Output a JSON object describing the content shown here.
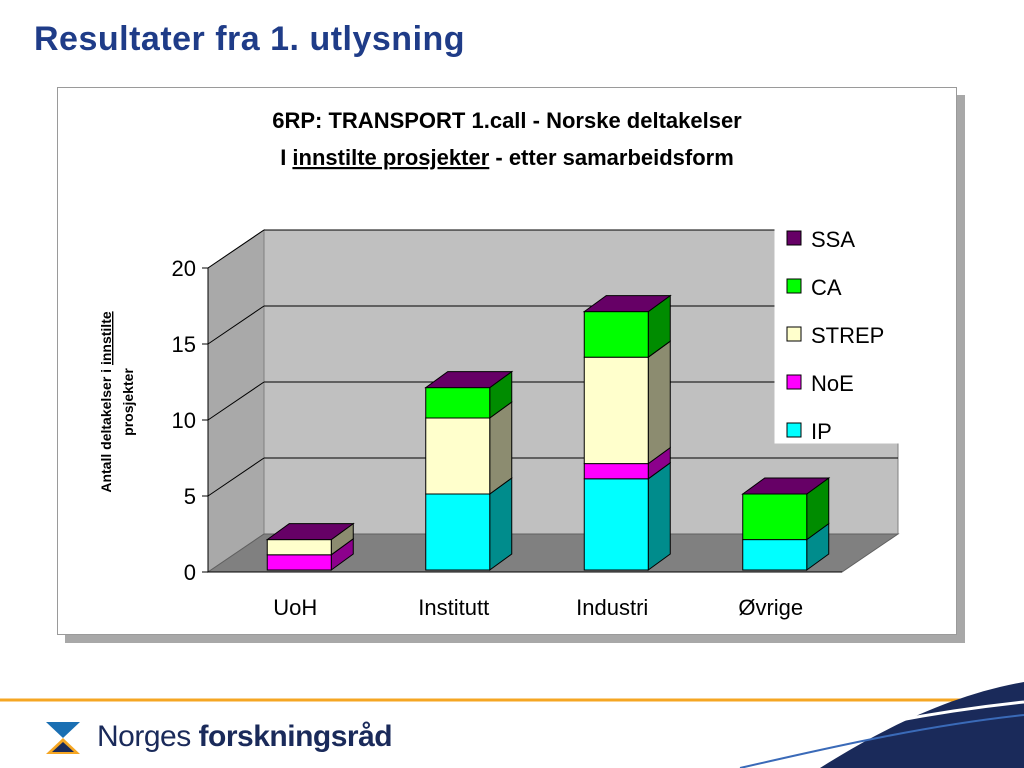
{
  "slide": {
    "title": "Resultater fra 1. utlysning"
  },
  "chart_data": {
    "type": "bar",
    "stacked": true,
    "three_d": true,
    "title_line1": "6RP:  TRANSPORT 1.call - Norske deltakelser",
    "title_line2_prefix": "I ",
    "title_line2_underlined": "innstilte prosjekter",
    "title_line2_suffix": " - etter samarbeidsform",
    "ylabel_line1_prefix": "Antall deltakelser i ",
    "ylabel_line1_underlined": "innstilte",
    "ylabel_line2": "prosjekter",
    "xlabel": "",
    "ylim": [
      0,
      20
    ],
    "yticks": [
      "0",
      "5",
      "10",
      "15",
      "20"
    ],
    "grid": true,
    "legend_position": "right",
    "categories": [
      "UoH",
      "Institutt",
      "Industri",
      "Øvrige"
    ],
    "series": [
      {
        "name": "IP",
        "color": "#00ffff",
        "values": [
          0,
          5,
          6,
          2
        ]
      },
      {
        "name": "NoE",
        "color": "#ff00ff",
        "values": [
          1,
          0,
          1,
          0
        ]
      },
      {
        "name": "STREP",
        "color": "#ffffcc",
        "values": [
          1,
          5,
          7,
          0
        ]
      },
      {
        "name": "CA",
        "color": "#00ff00",
        "values": [
          0,
          2,
          3,
          3
        ]
      },
      {
        "name": "SSA",
        "color": "#660066",
        "values": [
          0,
          0,
          0,
          0
        ]
      }
    ]
  },
  "footer": {
    "logo_word1": "Norges ",
    "logo_word2": "forskningsråd"
  }
}
